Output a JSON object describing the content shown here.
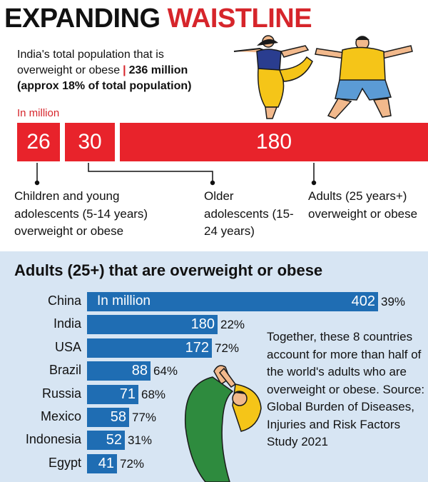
{
  "headline": {
    "part1": "EXPANDING",
    "part2": "WAISTLINE"
  },
  "intro": {
    "line1": "India's total population that is",
    "line2_a": "overweight or obese",
    "pipe": "|",
    "line2_b": "236 million",
    "line3": "(approx 18% of total population)"
  },
  "top_chart_unit": "In million",
  "lower_title": "Adults (25+) that are overweight or obese",
  "lower_unit": "In million",
  "note": "Together, these 8 countries account for more than half of the world's adults who are overweight or obese. Source: Global Burden of Diseases, Injuries and Risk Factors Study 2021",
  "colors": {
    "red": "#e8232b",
    "blue": "#1f6db3",
    "panel": "#d7e5f3",
    "figure_yellow": "#f5c518",
    "figure_green": "#2e8b3e",
    "figure_blue": "#5b9bd5"
  },
  "illustrations": [
    "yoga-woman-icon",
    "stretching-man-icon",
    "bending-woman-icon"
  ],
  "chart_data": [
    {
      "type": "bar",
      "orientation": "horizontal-stacked",
      "categories": [
        "Children and young adolescents (5-14 years) overweight or obese",
        "Older adolescents (15-24 years)",
        "Adults (25 years+) overweight or obese"
      ],
      "values": [
        26,
        30,
        180
      ],
      "labels": [
        "26",
        "30",
        "180"
      ]
    },
    {
      "type": "bar",
      "orientation": "horizontal",
      "categories": [
        "China",
        "India",
        "USA",
        "Brazil",
        "Russia",
        "Mexico",
        "Indonesia",
        "Egypt"
      ],
      "values": [
        402,
        180,
        172,
        88,
        71,
        58,
        52,
        41
      ],
      "labels": [
        "402",
        "180",
        "172",
        "88",
        "71",
        "58",
        "52",
        "41"
      ],
      "percent_labels": [
        "39%",
        "22%",
        "72%",
        "64%",
        "68%",
        "77%",
        "31%",
        "72%"
      ]
    }
  ]
}
